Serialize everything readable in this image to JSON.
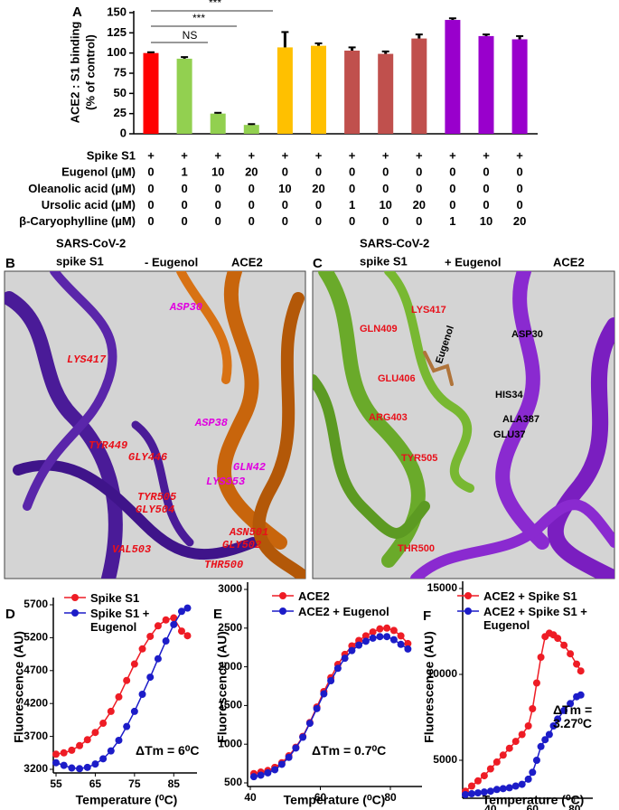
{
  "chart_data": [
    {
      "type": "bar",
      "panel_label": "A",
      "ylabel": [
        "ACE2 : S1 binding",
        "(% of control)"
      ],
      "values": [
        100,
        93,
        25,
        11,
        107,
        109,
        103,
        99,
        118,
        141,
        121,
        117
      ],
      "errors": [
        1,
        2,
        1,
        1,
        19,
        3,
        4,
        3,
        5,
        2,
        2,
        4
      ],
      "colors": [
        "#ff0000",
        "#92d050",
        "#92d050",
        "#92d050",
        "#ffc000",
        "#ffc000",
        "#c0504d",
        "#c0504d",
        "#c0504d",
        "#9900cc",
        "#9900cc",
        "#9900cc"
      ],
      "ylim": [
        0,
        150
      ],
      "yticks": [
        0,
        25,
        50,
        75,
        100,
        125,
        150
      ],
      "significance": [
        "NS",
        "***",
        "***"
      ],
      "table": {
        "rows": [
          {
            "label": "Spike S1",
            "cells": [
              "+",
              "+",
              "+",
              "+",
              "+",
              "+",
              "+",
              "+",
              "+",
              "+",
              "+",
              "+"
            ]
          },
          {
            "label": "Eugenol (µM)",
            "cells": [
              0,
              1,
              10,
              20,
              0,
              0,
              0,
              0,
              0,
              0,
              0,
              0
            ]
          },
          {
            "label": "Oleanolic acid (µM)",
            "cells": [
              0,
              0,
              0,
              0,
              10,
              20,
              0,
              0,
              0,
              0,
              0,
              0
            ]
          },
          {
            "label": "Ursolic acid (µM)",
            "cells": [
              0,
              0,
              0,
              0,
              0,
              0,
              1,
              10,
              20,
              0,
              0,
              0
            ]
          },
          {
            "label": "β-Caryophylline (µM)",
            "cells": [
              0,
              0,
              0,
              0,
              0,
              0,
              0,
              0,
              0,
              1,
              10,
              20
            ]
          }
        ]
      }
    },
    {
      "type": "line",
      "panel_label": "D",
      "xlabel": "Temperature (⁰C)",
      "ylabel": "Fluorescence (AU)",
      "x": [
        55,
        57,
        59,
        61,
        63,
        65,
        67,
        69,
        71,
        73,
        75,
        77,
        79,
        81,
        83,
        85,
        87,
        88.5
      ],
      "series": [
        {
          "name": "Spike S1",
          "color": "#ee1c25",
          "values": [
            3430,
            3450,
            3490,
            3560,
            3650,
            3760,
            3900,
            4080,
            4300,
            4550,
            4800,
            5030,
            5220,
            5380,
            5470,
            5500,
            5300,
            5230
          ]
        },
        {
          "name": "Spike S1 + Eugenol",
          "color": "#1c1cc8",
          "values": [
            3300,
            3260,
            3220,
            3210,
            3230,
            3280,
            3360,
            3480,
            3640,
            3850,
            4080,
            4340,
            4600,
            4880,
            5150,
            5400,
            5600,
            5650
          ]
        }
      ],
      "xlim": [
        55,
        90
      ],
      "xticks": [
        55,
        65,
        75,
        85
      ],
      "ylim": [
        3200,
        5700
      ],
      "yticks": [
        3200,
        3700,
        4200,
        4700,
        5200,
        5700
      ],
      "annotation": "ΔTm = 6⁰C"
    },
    {
      "type": "line",
      "panel_label": "E",
      "xlabel": "Temperature (⁰C)",
      "ylabel": "Fluorescence (AU)",
      "x": [
        41,
        43,
        45,
        47,
        49,
        51,
        53,
        55,
        57,
        59,
        61,
        63,
        65,
        67,
        69,
        71,
        73,
        75,
        77,
        79,
        81,
        83,
        85
      ],
      "series": [
        {
          "name": "ACE2",
          "color": "#ee1c25",
          "values": [
            620,
            640,
            660,
            700,
            760,
            850,
            960,
            1100,
            1280,
            1480,
            1680,
            1860,
            2030,
            2160,
            2270,
            2340,
            2400,
            2450,
            2490,
            2500,
            2470,
            2400,
            2300
          ]
        },
        {
          "name": "ACE2 + Eugenol",
          "color": "#1c1cc8",
          "values": [
            580,
            600,
            630,
            670,
            740,
            830,
            950,
            1090,
            1270,
            1460,
            1650,
            1820,
            1980,
            2110,
            2210,
            2280,
            2330,
            2370,
            2390,
            2390,
            2350,
            2290,
            2230
          ]
        }
      ],
      "xlim": [
        40,
        88
      ],
      "xticks": [
        40,
        60,
        80
      ],
      "ylim": [
        500,
        3000
      ],
      "yticks": [
        500,
        1000,
        1500,
        2000,
        2500,
        3000
      ],
      "annotation": "ΔTm = 0.7⁰C"
    },
    {
      "type": "line",
      "panel_label": "F",
      "xlabel": "Temperature (⁰C)",
      "ylabel": "Fluorescence (AU)",
      "x": [
        28,
        31,
        34,
        37,
        40,
        43,
        46,
        49,
        52,
        55,
        58,
        60,
        62,
        64,
        66,
        68,
        70,
        72,
        75,
        78,
        81,
        83
      ],
      "series": [
        {
          "name": "ACE2 + Spike S1",
          "color": "#ee1c25",
          "values": [
            3200,
            3500,
            3800,
            4100,
            4500,
            4900,
            5300,
            5700,
            6100,
            6500,
            7000,
            8000,
            9500,
            11000,
            12200,
            12400,
            12300,
            12100,
            11700,
            11200,
            10600,
            10200
          ]
        },
        {
          "name": "ACE2 + Spike S1 + Eugenol",
          "color": "#1c1cc8",
          "values": [
            3000,
            3050,
            3100,
            3150,
            3200,
            3300,
            3350,
            3400,
            3500,
            3600,
            3900,
            4300,
            5000,
            5800,
            6200,
            6500,
            7000,
            7400,
            7900,
            8300,
            8700,
            8800
          ]
        }
      ],
      "xlim": [
        28,
        87
      ],
      "xticks": [
        40,
        60,
        80
      ],
      "ylim": [
        3000,
        15000
      ],
      "yticks": [
        5000,
        10000,
        15000
      ],
      "annotation": "ΔTm = 3.27⁰C"
    }
  ],
  "structures": [
    {
      "panel_label": "B",
      "title": [
        "SARS-CoV-2",
        "spike S1"
      ],
      "condition": "- Eugenol",
      "receptor": "ACE2",
      "residues": [
        {
          "text": "ASP30",
          "color": "#e000e0"
        },
        {
          "text": "LYS417",
          "color": "#e8101a"
        },
        {
          "text": "TYR449",
          "color": "#e8101a"
        },
        {
          "text": "GLY446",
          "color": "#e8101a"
        },
        {
          "text": "ASP38",
          "color": "#e000e0"
        },
        {
          "text": "GLN42",
          "color": "#e000e0"
        },
        {
          "text": "LYS353",
          "color": "#e000e0"
        },
        {
          "text": "TYR505",
          "color": "#e8101a"
        },
        {
          "text": "GLY504",
          "color": "#e8101a"
        },
        {
          "text": "ASN501",
          "color": "#e8101a"
        },
        {
          "text": "GLY502",
          "color": "#e8101a"
        },
        {
          "text": "VAL503",
          "color": "#e8101a"
        },
        {
          "text": "THR500",
          "color": "#e8101a"
        }
      ]
    },
    {
      "panel_label": "C",
      "title": [
        "SARS-CoV-2",
        "spike S1"
      ],
      "condition": "+ Eugenol",
      "receptor": "ACE2",
      "residues": [
        {
          "text": "LYS417",
          "color": "#e8101a"
        },
        {
          "text": "GLN409",
          "color": "#e8101a"
        },
        {
          "text": "GLU406",
          "color": "#e8101a"
        },
        {
          "text": "Eugenol",
          "color": "#000000"
        },
        {
          "text": "ARG403",
          "color": "#e8101a"
        },
        {
          "text": "TYR505",
          "color": "#e8101a"
        },
        {
          "text": "THR500",
          "color": "#e8101a"
        },
        {
          "text": "ASP30",
          "color": "#000000"
        },
        {
          "text": "HIS34",
          "color": "#000000"
        },
        {
          "text": "ALA387",
          "color": "#000000"
        },
        {
          "text": "GLU37",
          "color": "#000000"
        }
      ]
    }
  ]
}
